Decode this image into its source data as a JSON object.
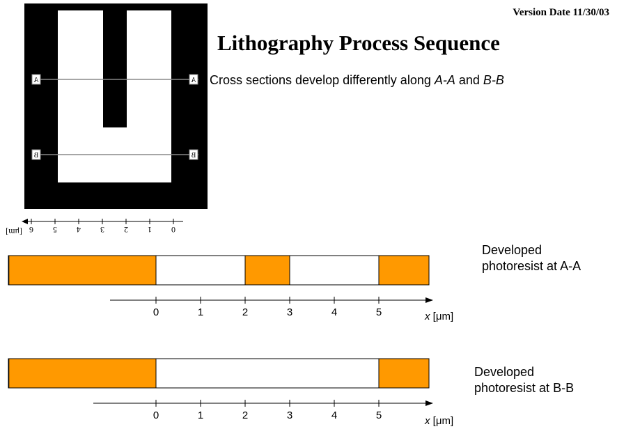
{
  "header": {
    "version_date": "Version Date 11/30/03",
    "title": "Lithography Process Sequence",
    "subtitle_prefix": "Cross sections develop differently along ",
    "subtitle_section_a": "A-A",
    "subtitle_and": " and ",
    "subtitle_section_b": "B-B"
  },
  "mask": {
    "label_a": "A",
    "label_b": "B",
    "ruler_ticks": [
      "0",
      "1",
      "2",
      "3",
      "4",
      "5",
      "6"
    ],
    "ruler_unit": "[μm]"
  },
  "cross_sections": [
    {
      "caption_line1": "Developed",
      "caption_line2": "photoresist at A-A",
      "resist_segments_um": [
        [
          -3.3,
          0
        ],
        [
          2,
          3
        ],
        [
          5,
          6.3
        ]
      ]
    },
    {
      "caption_line1": "Developed",
      "caption_line2": "photoresist at B-B",
      "resist_segments_um": [
        [
          -3.3,
          0
        ],
        [
          5,
          6.3
        ]
      ]
    }
  ],
  "axis": {
    "ticks": [
      "0",
      "1",
      "2",
      "3",
      "4",
      "5"
    ],
    "label_var": "x",
    "label_unit": " [μm]"
  },
  "colors": {
    "resist": "#FF9900",
    "mask_dark": "#000000",
    "mask_clear": "#FFFFFF",
    "section_line": "#808080"
  }
}
